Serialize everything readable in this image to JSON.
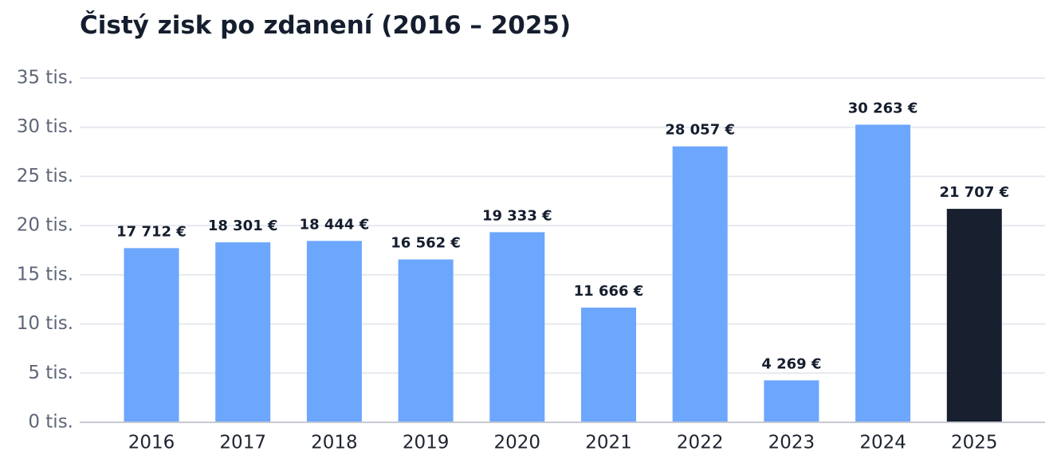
{
  "chart_data": {
    "type": "bar",
    "title": "Čistý zisk po zdanení (2016 – 2025)",
    "xlabel": "",
    "ylabel": "",
    "categories": [
      "2016",
      "2017",
      "2018",
      "2019",
      "2020",
      "2021",
      "2022",
      "2023",
      "2024",
      "2025"
    ],
    "values": [
      17712,
      18301,
      18444,
      16562,
      19333,
      11666,
      28057,
      4269,
      30263,
      21707
    ],
    "value_labels": [
      "17 712 €",
      "18 301 €",
      "18 444 €",
      "16 562 €",
      "19 333 €",
      "11 666 €",
      "28 057 €",
      "4 269 €",
      "30 263 €",
      "21 707 €"
    ],
    "ylim": [
      0,
      35000
    ],
    "yticks": [
      0,
      5000,
      10000,
      15000,
      20000,
      25000,
      30000,
      35000
    ],
    "ytick_labels": [
      "0 tis.",
      "5 tis.",
      "10 tis.",
      "15 tis.",
      "20 tis.",
      "25 tis.",
      "30 tis.",
      "35 tis."
    ],
    "grid": true,
    "legend": false,
    "colors": {
      "bar": "#6ca6fd",
      "highlight_bar": "#18202f",
      "grid": "#e6e9ef",
      "axis": "#c6cad1"
    },
    "highlight_category": "2025"
  }
}
